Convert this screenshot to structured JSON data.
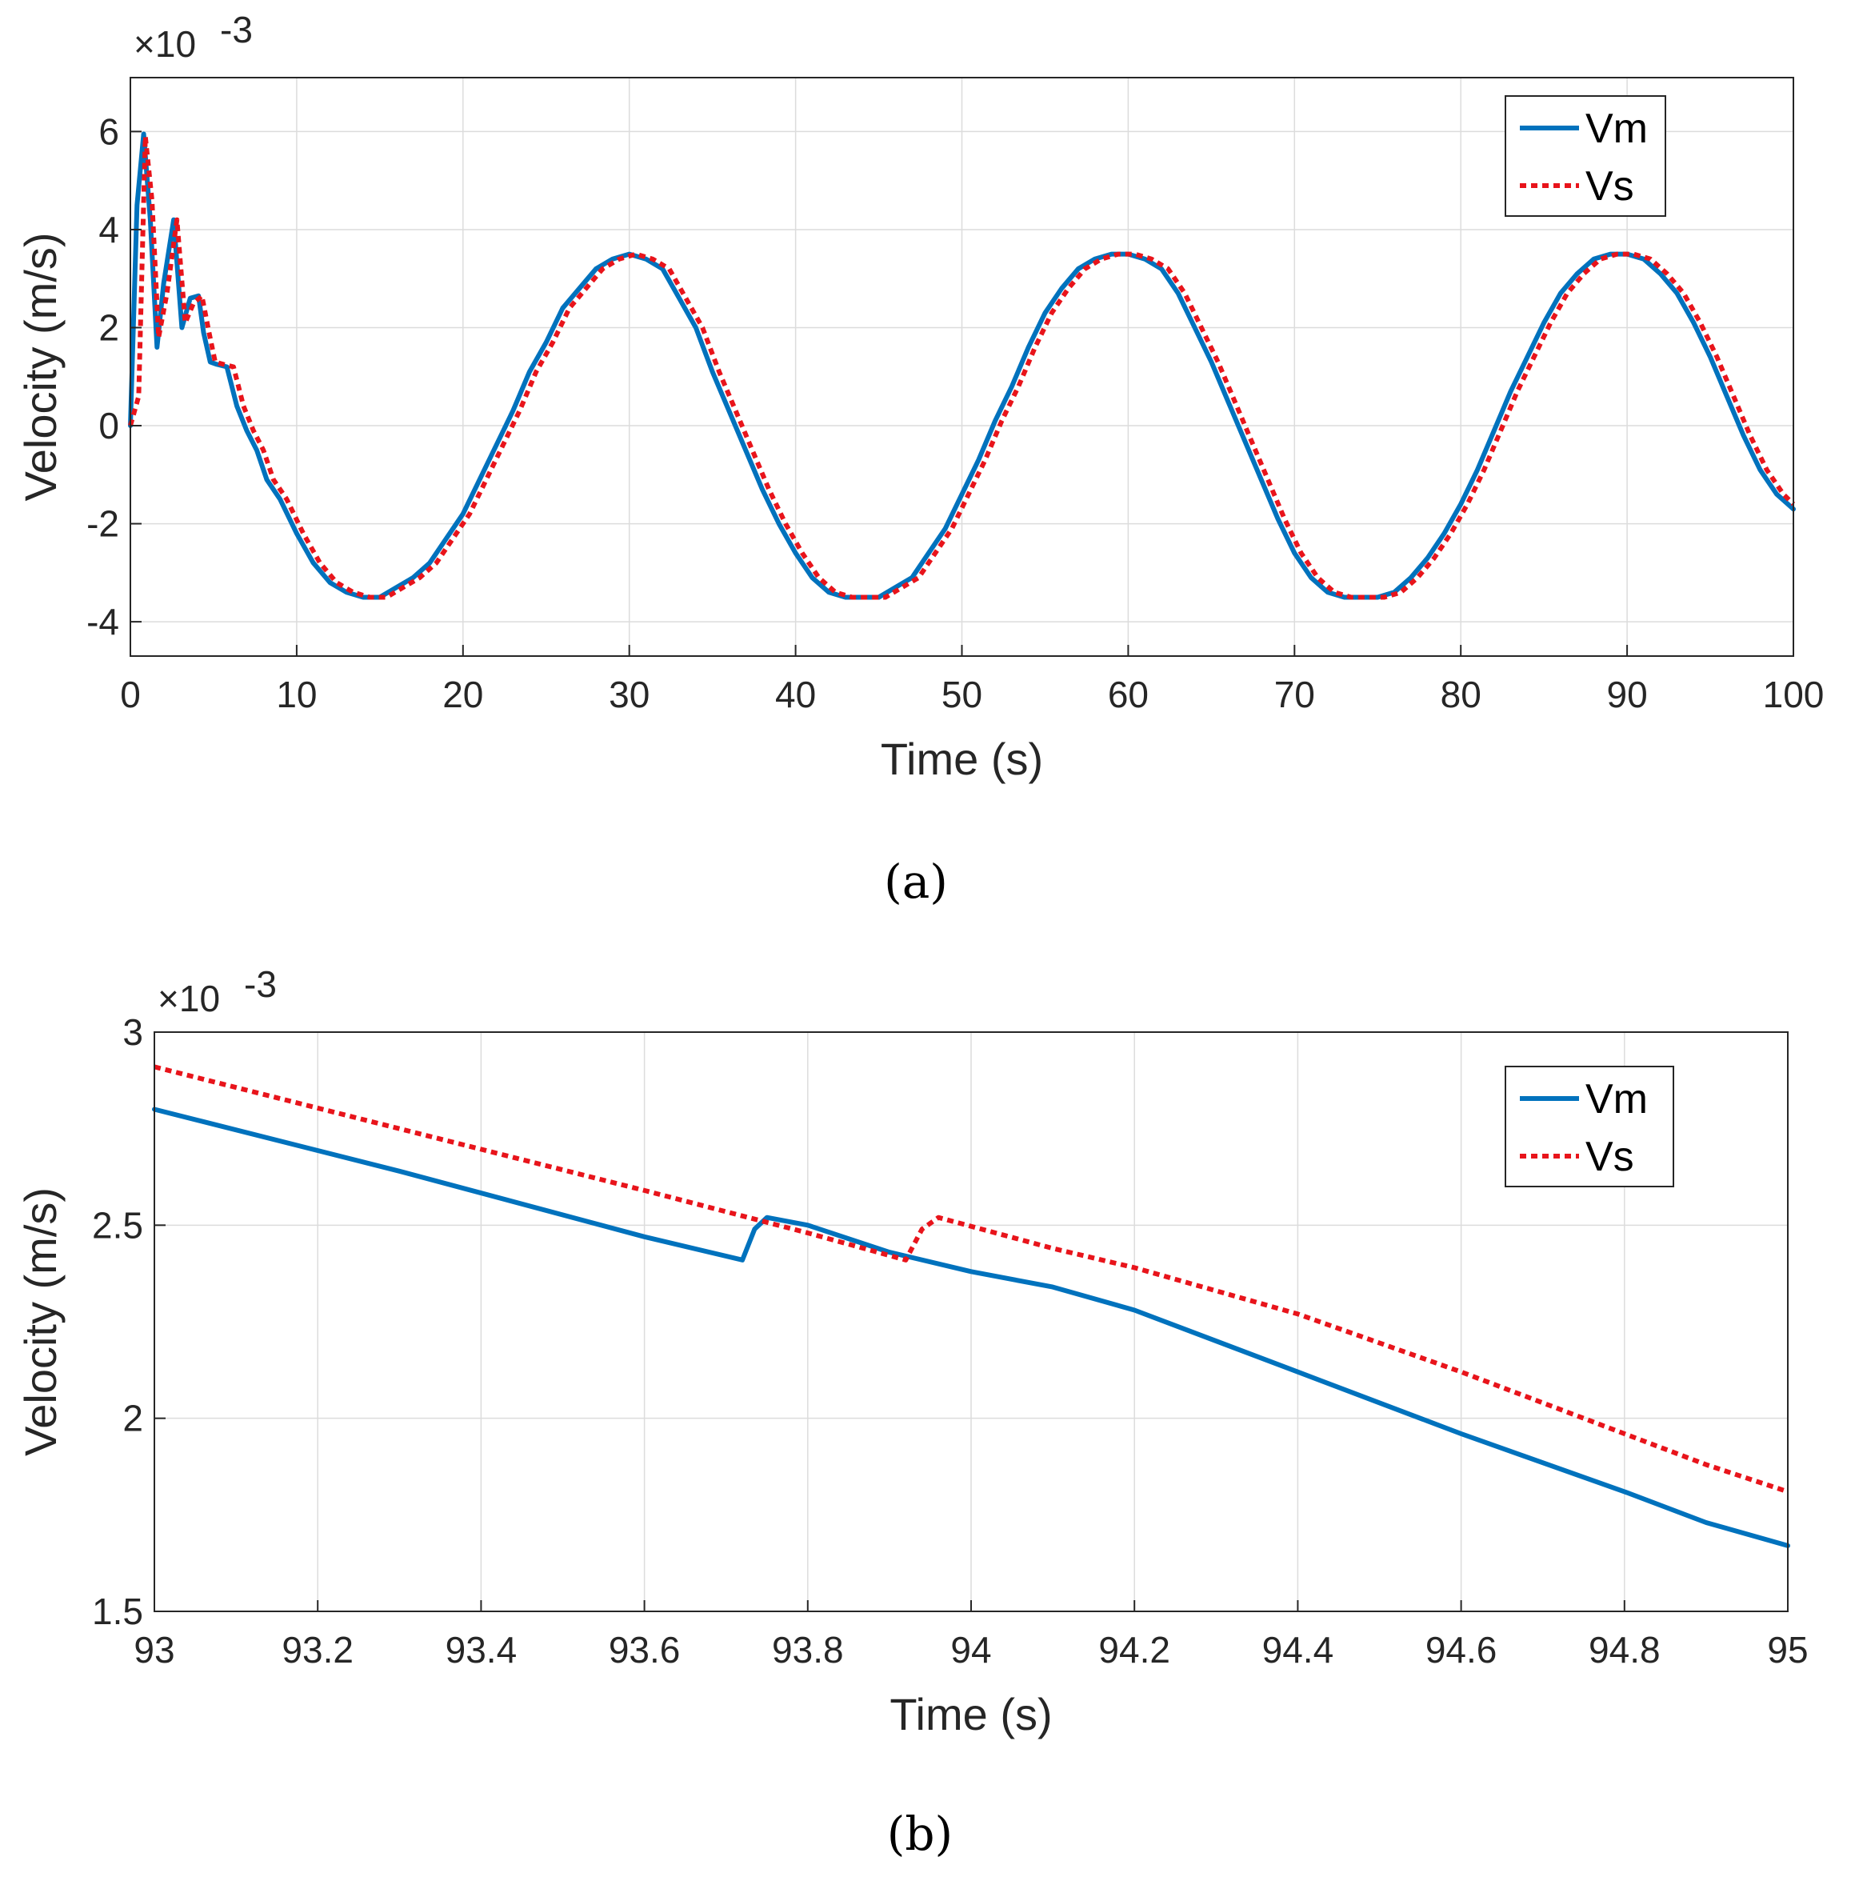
{
  "chart_data": [
    {
      "type": "line",
      "panel_label": "(a)",
      "xlabel": "Time (s)",
      "ylabel": "Velocity (m/s)",
      "y_multiplier": "×10",
      "y_exponent": "-3",
      "xlim": [
        0,
        100
      ],
      "ylim": [
        -4.7,
        7.1
      ],
      "xticks": [
        0,
        10,
        20,
        30,
        40,
        50,
        60,
        70,
        80,
        90,
        100
      ],
      "xtick_labels": [
        "0",
        "10",
        "20",
        "30",
        "40",
        "50",
        "60",
        "70",
        "80",
        "90",
        "100"
      ],
      "yticks": [
        -4,
        -2,
        0,
        2,
        4,
        6
      ],
      "ytick_labels": [
        "-4",
        "-2",
        "0",
        "2",
        "4",
        "6"
      ],
      "grid": true,
      "legend_position": "top-right",
      "series": [
        {
          "name": "Vm",
          "color": "#0072BD",
          "style": "solid",
          "x": [
            0,
            0.4,
            0.8,
            1.2,
            1.6,
            2.0,
            2.6,
            3.1,
            3.6,
            4.1,
            4.4,
            4.8,
            5.2,
            5.8,
            6.4,
            7.0,
            7.6,
            8.2,
            9.0,
            10,
            11,
            12,
            13,
            14,
            15,
            16,
            17,
            18,
            19,
            20,
            21,
            22,
            23,
            24,
            25,
            26,
            27,
            28,
            29,
            30,
            31,
            32,
            33,
            34,
            35,
            36,
            37,
            38,
            39,
            40,
            41,
            42,
            43,
            44,
            45,
            46,
            47,
            48,
            49,
            50,
            51,
            52,
            53,
            54,
            55,
            56,
            57,
            58,
            59,
            60,
            61,
            62,
            63,
            64,
            65,
            66,
            67,
            68,
            69,
            70,
            71,
            72,
            73,
            74,
            75,
            76,
            77,
            78,
            79,
            80,
            81,
            82,
            83,
            84,
            85,
            86,
            87,
            88,
            89,
            90,
            91,
            92,
            93,
            94,
            95,
            96,
            97,
            98,
            99,
            100
          ],
          "y": [
            0,
            4.5,
            5.95,
            4.2,
            1.6,
            2.9,
            4.2,
            2.0,
            2.6,
            2.65,
            1.9,
            1.3,
            1.25,
            1.2,
            0.4,
            -0.1,
            -0.5,
            -1.1,
            -1.5,
            -2.2,
            -2.8,
            -3.2,
            -3.4,
            -3.5,
            -3.5,
            -3.3,
            -3.1,
            -2.8,
            -2.3,
            -1.8,
            -1.1,
            -0.4,
            0.3,
            1.1,
            1.7,
            2.4,
            2.8,
            3.2,
            3.4,
            3.5,
            3.4,
            3.2,
            2.6,
            2.0,
            1.1,
            0.3,
            -0.5,
            -1.3,
            -2.0,
            -2.6,
            -3.1,
            -3.4,
            -3.5,
            -3.5,
            -3.5,
            -3.3,
            -3.1,
            -2.6,
            -2.1,
            -1.4,
            -0.7,
            0.1,
            0.8,
            1.6,
            2.3,
            2.8,
            3.2,
            3.4,
            3.5,
            3.5,
            3.4,
            3.2,
            2.7,
            2.0,
            1.3,
            0.5,
            -0.3,
            -1.1,
            -1.9,
            -2.6,
            -3.1,
            -3.4,
            -3.5,
            -3.5,
            -3.5,
            -3.4,
            -3.1,
            -2.7,
            -2.2,
            -1.6,
            -0.9,
            -0.1,
            0.7,
            1.4,
            2.1,
            2.7,
            3.1,
            3.4,
            3.5,
            3.5,
            3.4,
            3.1,
            2.7,
            2.1,
            1.4,
            0.6,
            -0.2,
            -0.9,
            -1.4,
            -1.7
          ]
        },
        {
          "name": "Vs",
          "color": "#E8141B",
          "style": "dotted",
          "x": [
            0,
            0.5,
            0.9,
            1.3,
            1.7,
            2.2,
            2.8,
            3.3,
            3.8,
            4.3,
            4.7,
            5.1,
            5.6,
            6.2,
            6.8,
            7.4,
            8.0,
            8.6,
            9.4,
            10.4,
            11.4,
            12.4,
            13.4,
            14.4,
            15.4,
            16.4,
            17.4,
            18.4,
            19.4,
            20.4,
            21.4,
            22.4,
            23.4,
            24.4,
            25.4,
            26.4,
            27.4,
            28.4,
            29.4,
            30.4,
            31.4,
            32.4,
            33.4,
            34.4,
            35.4,
            36.4,
            37.4,
            38.4,
            39.4,
            40.4,
            41.4,
            42.4,
            43.4,
            44.4,
            45.4,
            46.4,
            47.4,
            48.4,
            49.4,
            50.4,
            51.4,
            52.4,
            53.4,
            54.4,
            55.4,
            56.4,
            57.4,
            58.4,
            59.4,
            60.4,
            61.4,
            62.4,
            63.4,
            64.4,
            65.4,
            66.4,
            67.4,
            68.4,
            69.4,
            70.4,
            71.4,
            72.4,
            73.4,
            74.4,
            75.4,
            76.4,
            77.4,
            78.4,
            79.4,
            80.4,
            81.4,
            82.4,
            83.4,
            84.4,
            85.4,
            86.4,
            87.4,
            88.4,
            89.4,
            90.4,
            91.4,
            92.4,
            93.4,
            94.4,
            95.4,
            96.4,
            97.4,
            98.4,
            99.4,
            100
          ],
          "y": [
            0,
            0.6,
            5.9,
            4.6,
            1.8,
            2.7,
            4.2,
            2.1,
            2.5,
            2.65,
            1.95,
            1.3,
            1.25,
            1.2,
            0.4,
            -0.1,
            -0.5,
            -1.1,
            -1.5,
            -2.2,
            -2.8,
            -3.2,
            -3.4,
            -3.5,
            -3.5,
            -3.3,
            -3.1,
            -2.8,
            -2.3,
            -1.8,
            -1.1,
            -0.4,
            0.3,
            1.1,
            1.7,
            2.4,
            2.8,
            3.2,
            3.4,
            3.5,
            3.4,
            3.2,
            2.6,
            2.0,
            1.1,
            0.3,
            -0.5,
            -1.3,
            -2.0,
            -2.6,
            -3.1,
            -3.4,
            -3.5,
            -3.5,
            -3.5,
            -3.3,
            -3.1,
            -2.6,
            -2.1,
            -1.4,
            -0.7,
            0.1,
            0.8,
            1.6,
            2.3,
            2.8,
            3.2,
            3.4,
            3.5,
            3.5,
            3.4,
            3.2,
            2.7,
            2.0,
            1.3,
            0.5,
            -0.3,
            -1.1,
            -1.9,
            -2.6,
            -3.1,
            -3.4,
            -3.5,
            -3.5,
            -3.5,
            -3.4,
            -3.1,
            -2.7,
            -2.2,
            -1.6,
            -0.9,
            -0.1,
            0.7,
            1.4,
            2.1,
            2.7,
            3.1,
            3.4,
            3.5,
            3.5,
            3.4,
            3.1,
            2.7,
            2.1,
            1.4,
            0.6,
            -0.2,
            -0.9,
            -1.4,
            -1.6
          ]
        }
      ]
    },
    {
      "type": "line",
      "panel_label": "(b)",
      "xlabel": "Time (s)",
      "ylabel": "Velocity (m/s)",
      "y_multiplier": "×10",
      "y_exponent": "-3",
      "xlim": [
        93,
        95
      ],
      "ylim": [
        1.5,
        3.0
      ],
      "xticks": [
        93,
        93.2,
        93.4,
        93.6,
        93.8,
        94,
        94.2,
        94.4,
        94.6,
        94.8,
        95
      ],
      "xtick_labels": [
        "93",
        "93.2",
        "93.4",
        "93.6",
        "93.8",
        "94",
        "94.2",
        "94.4",
        "94.6",
        "94.8",
        "95"
      ],
      "yticks": [
        1.5,
        2,
        2.5,
        3
      ],
      "ytick_labels": [
        "1.5",
        "2",
        "2.5",
        "3"
      ],
      "grid": true,
      "legend_position": "top-right",
      "series": [
        {
          "name": "Vm",
          "color": "#0072BD",
          "style": "solid",
          "x": [
            93.0,
            93.3,
            93.6,
            93.72,
            93.735,
            93.75,
            93.8,
            93.9,
            94.0,
            94.1,
            94.2,
            94.4,
            94.6,
            94.8,
            94.9,
            95.0
          ],
          "y": [
            2.8,
            2.64,
            2.47,
            2.41,
            2.49,
            2.52,
            2.5,
            2.43,
            2.38,
            2.34,
            2.28,
            2.12,
            1.96,
            1.81,
            1.73,
            1.67
          ]
        },
        {
          "name": "Vs",
          "color": "#E8141B",
          "style": "dotted",
          "x": [
            93.0,
            93.3,
            93.6,
            93.8,
            93.92,
            93.94,
            93.96,
            94.1,
            94.2,
            94.4,
            94.6,
            94.8,
            94.9,
            95.0
          ],
          "y": [
            2.91,
            2.75,
            2.59,
            2.48,
            2.41,
            2.49,
            2.52,
            2.44,
            2.39,
            2.27,
            2.12,
            1.96,
            1.88,
            1.81
          ]
        }
      ]
    }
  ]
}
